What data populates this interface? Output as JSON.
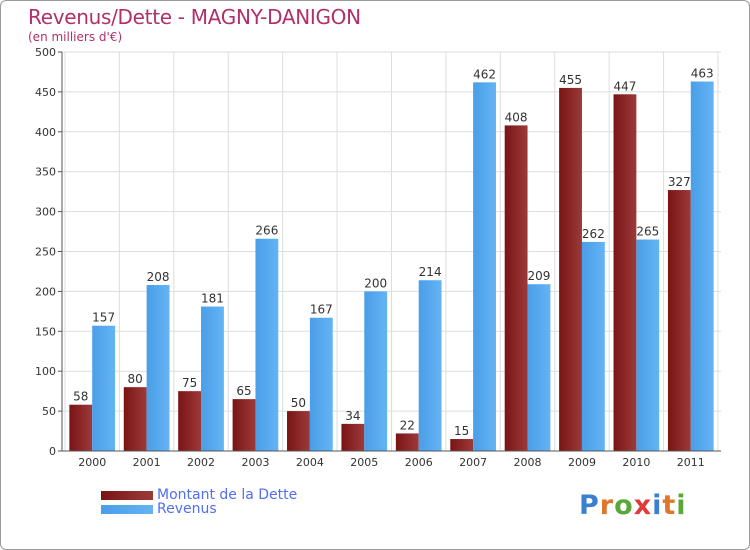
{
  "title": "Revenus/Dette - MAGNY-DANIGON",
  "subtitle": "(en milliers d'€)",
  "logo": {
    "text": "Proxiti",
    "letter_colors": [
      "#3a7fd0",
      "#e0762a",
      "#5aa83a",
      "#e03a3a",
      "#3a7fd0",
      "#e0762a",
      "#5aa83a"
    ]
  },
  "colors": {
    "dette": "#7a1414",
    "dette_light": "#9c3a3a",
    "revenus": "#4a9ee8",
    "revenus_light": "#64b4f4",
    "title": "#b0306a",
    "legend_text": "#4f6ff0",
    "grid": "#dddddd",
    "axis": "#555555"
  },
  "chart_data": {
    "type": "bar",
    "title": "Revenus/Dette - MAGNY-DANIGON",
    "subtitle": "(en milliers d'€)",
    "categories": [
      "2000",
      "2001",
      "2002",
      "2003",
      "2004",
      "2005",
      "2006",
      "2007",
      "2008",
      "2009",
      "2010",
      "2011"
    ],
    "series": [
      {
        "name": "Montant de la Dette",
        "values": [
          58,
          80,
          75,
          65,
          50,
          34,
          22,
          15,
          408,
          455,
          447,
          327
        ]
      },
      {
        "name": "Revenus",
        "values": [
          157,
          208,
          181,
          266,
          167,
          200,
          214,
          462,
          209,
          262,
          265,
          463
        ]
      }
    ],
    "ylim": [
      0,
      500
    ],
    "yticks": [
      0,
      50,
      100,
      150,
      200,
      250,
      300,
      350,
      400,
      450,
      500
    ],
    "grid": true,
    "legend": "bottom-left"
  }
}
